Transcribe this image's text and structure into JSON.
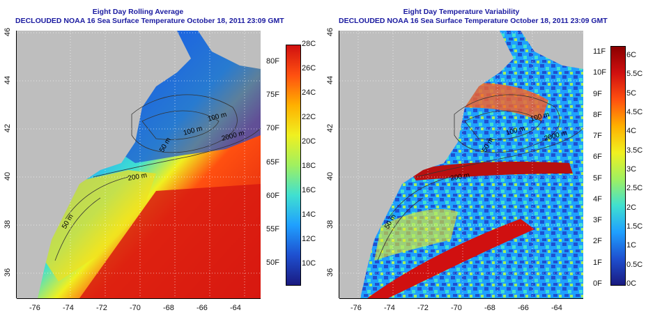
{
  "left": {
    "title": "Eight Day Rolling Average",
    "subtitle": "DECLOUDED NOAA 16 Sea Surface Temperature October 18, 2011 23:09 GMT",
    "lon_ticks": [
      "-76",
      "-74",
      "-72",
      "-70",
      "-68",
      "-66",
      "-64"
    ],
    "lat_ticks": [
      "46",
      "44",
      "42",
      "40",
      "38",
      "36"
    ],
    "contour_labels": [
      "100 m",
      "2000 m",
      "100 m",
      "50 m",
      "200 m",
      "50 m"
    ],
    "colorbar_c": [
      "28C",
      "26C",
      "24C",
      "22C",
      "20C",
      "18C",
      "16C",
      "14C",
      "12C",
      "10C"
    ],
    "colorbar_f": [
      "80F",
      "75F",
      "70F",
      "65F",
      "60F",
      "55F",
      "50F"
    ],
    "colors": [
      "#1a1a80",
      "#1e50d0",
      "#1fa0ff",
      "#40e0d0",
      "#a0f060",
      "#f0f020",
      "#ffb000",
      "#ff5010",
      "#d01010"
    ]
  },
  "right": {
    "title": "Eight Day Temperature Variability",
    "subtitle": "DECLOUDED NOAA 16 Sea Surface Temperature October 18, 2011 23:09 GMT",
    "lon_ticks": [
      "-76",
      "-74",
      "-72",
      "-70",
      "-68",
      "-66",
      "-64"
    ],
    "lat_ticks": [
      "46",
      "44",
      "42",
      "40",
      "38",
      "36"
    ],
    "contour_labels": [
      "100 m",
      "2000 m",
      "100 m",
      "50 m",
      "200 m",
      "50 m"
    ],
    "colorbar_c": [
      "6C",
      "5.5C",
      "5C",
      "4.5C",
      "4C",
      "3.5C",
      "3C",
      "2.5C",
      "2C",
      "1.5C",
      "1C",
      "0.5C",
      "0C"
    ],
    "colorbar_f": [
      "11F",
      "10F",
      "9F",
      "8F",
      "7F",
      "6F",
      "5F",
      "4F",
      "3F",
      "2F",
      "1F",
      "0F"
    ],
    "colors": [
      "#1a1a80",
      "#1e50d0",
      "#1fa0ff",
      "#40e0d0",
      "#a0f060",
      "#f0f020",
      "#ffb000",
      "#ff5010",
      "#d01010",
      "#8b0000"
    ]
  }
}
